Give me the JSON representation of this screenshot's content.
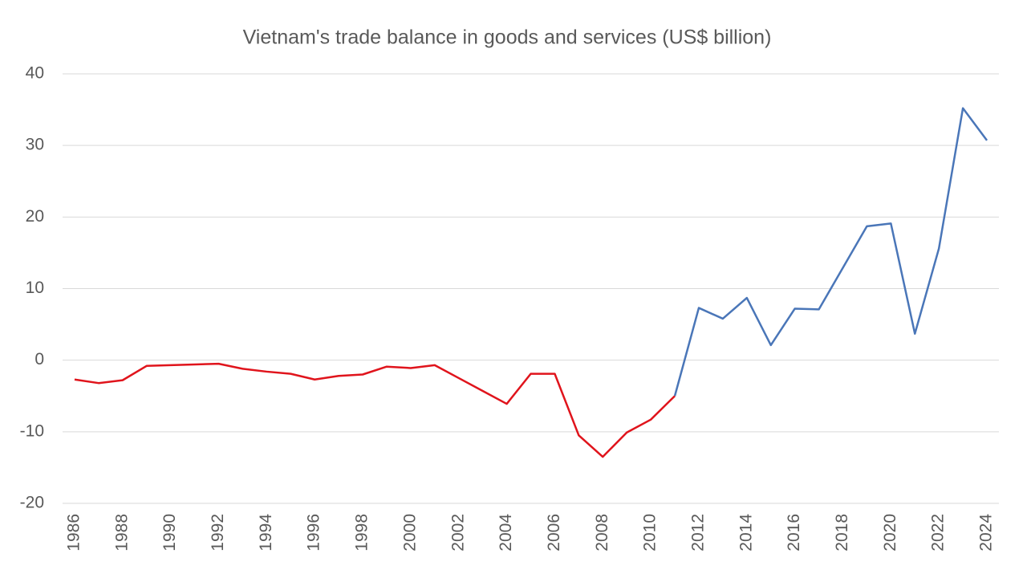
{
  "chart_data": {
    "type": "line",
    "title": "Vietnam's trade balance in goods and services (US$ billion)",
    "x": [
      1986,
      1987,
      1988,
      1989,
      1990,
      1991,
      1992,
      1993,
      1994,
      1995,
      1996,
      1997,
      1998,
      1999,
      2000,
      2001,
      2002,
      2003,
      2004,
      2005,
      2006,
      2007,
      2008,
      2009,
      2010,
      2011,
      2012,
      2013,
      2014,
      2015,
      2016,
      2017,
      2018,
      2019,
      2020,
      2021,
      2022,
      2023,
      2024
    ],
    "series": [
      {
        "color": "#e0141c",
        "values": [
          -2.7,
          -3.2,
          -2.8,
          -0.8,
          -0.7,
          -0.6,
          -0.5,
          -1.2,
          -1.6,
          -1.9,
          -2.7,
          -2.2,
          -2.0,
          -0.9,
          -1.1,
          -0.7,
          -2.5,
          -4.3,
          -6.1,
          -1.9,
          -1.9,
          -10.5,
          -13.5,
          -10.1,
          -8.3,
          -5.0,
          null,
          null,
          null,
          null,
          null,
          null,
          null,
          null,
          null,
          null,
          null,
          null,
          null
        ]
      },
      {
        "color": "#4a76b8",
        "values": [
          null,
          null,
          null,
          null,
          null,
          null,
          null,
          null,
          null,
          null,
          null,
          null,
          null,
          null,
          null,
          null,
          null,
          null,
          null,
          null,
          null,
          null,
          null,
          null,
          null,
          -5.0,
          7.3,
          5.8,
          8.7,
          2.1,
          7.2,
          7.1,
          12.9,
          18.7,
          19.1,
          3.7,
          15.6,
          35.2,
          30.7
        ]
      }
    ],
    "xlim": [
      1985.5,
      2024.5
    ],
    "xticks": [
      1986,
      1988,
      1990,
      1992,
      1994,
      1996,
      1998,
      2000,
      2002,
      2004,
      2006,
      2008,
      2010,
      2012,
      2014,
      2016,
      2018,
      2020,
      2022,
      2024
    ],
    "ylim": [
      -20,
      40
    ],
    "yticks": [
      -20,
      -10,
      0,
      10,
      20,
      30,
      40
    ],
    "grid": true
  }
}
